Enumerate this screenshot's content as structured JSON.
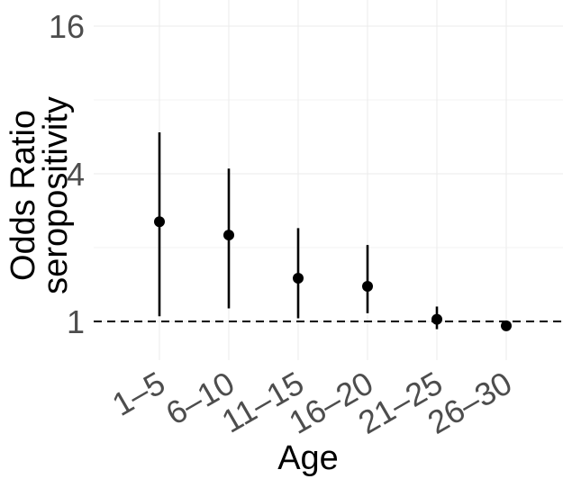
{
  "chart_data": {
    "type": "scatter",
    "subtype": "point-range (odds ratio with confidence intervals)",
    "title": "",
    "xlabel": "Age",
    "ylabel_lines": [
      "Odds Ratio",
      "seropositivity"
    ],
    "y_scale": "log2",
    "ylim": [
      0.6,
      17.0
    ],
    "y_ticks": [
      1,
      4,
      16
    ],
    "y_tick_labels": [
      "1",
      "4",
      "16"
    ],
    "reference_line": {
      "y": 1,
      "style": "dashed"
    },
    "grid": true,
    "legend": "none",
    "categories": [
      "1–5",
      "6–10",
      "11–15",
      "16–20",
      "21–25",
      "26–30"
    ],
    "estimates": [
      2.55,
      2.25,
      1.5,
      1.39,
      1.02,
      0.96
    ],
    "ci_lower": [
      1.05,
      1.13,
      1.03,
      1.08,
      0.93,
      0.96
    ],
    "ci_upper": [
      5.9,
      4.2,
      2.4,
      2.05,
      1.15,
      0.96
    ],
    "colors": {
      "points": "#000000",
      "grid": "#ebebeb",
      "tick_text": "#4d4d4d"
    }
  }
}
